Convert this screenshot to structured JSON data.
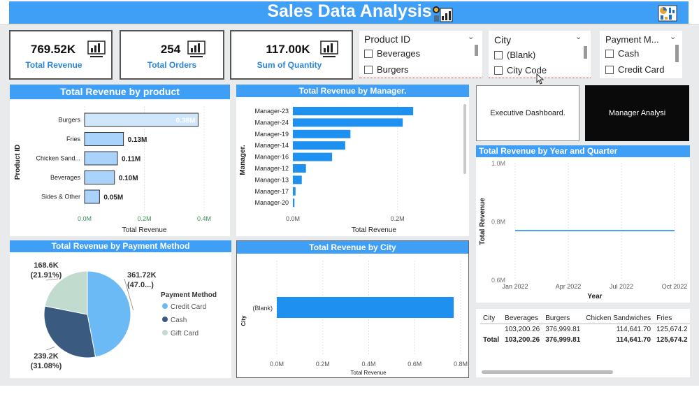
{
  "header": {
    "title": "Sales Data Analysis"
  },
  "kpis": [
    {
      "value": "769.52K",
      "label": "Total Revenue"
    },
    {
      "value": "254",
      "label": "Total Orders"
    },
    {
      "value": "117.00K",
      "label": "Sum of Quantity"
    }
  ],
  "slicers": {
    "product": {
      "title": "Product ID",
      "items": [
        "Beverages",
        "Burgers"
      ]
    },
    "city": {
      "title": "City",
      "items": [
        "(Blank)",
        "City Code"
      ]
    },
    "payment": {
      "title": "Payment M...",
      "items": [
        "Cash",
        "Credit Card"
      ]
    }
  },
  "buttons": {
    "executive": "Executive Dashboard.",
    "manager": "Manager Analysi"
  },
  "chart_data": [
    {
      "id": "rev_by_product",
      "type": "bar",
      "title": "Total Revenue by product",
      "xlabel": "Total Revenue",
      "ylabel": "Product ID",
      "categories": [
        "Burgers",
        "Fries",
        "Chicken Sand...",
        "Beverages",
        "Sides & Other"
      ],
      "values": [
        0.38,
        0.13,
        0.11,
        0.1,
        0.05
      ],
      "value_labels": [
        "0.38M",
        "0.13M",
        "0.11M",
        "0.10M",
        "0.05M"
      ],
      "xticks": [
        "0.0M",
        "0.2M",
        "0.4M"
      ],
      "xlim": [
        0,
        0.4
      ]
    },
    {
      "id": "rev_by_manager",
      "type": "bar",
      "title": "Total Revenue by Manager.",
      "xlabel": "Total Revenue",
      "ylabel": "Manager.",
      "categories": [
        "Manager-23",
        "Manager-24",
        "Manager-19",
        "Manager-14",
        "Manager-16",
        "Manager-12",
        "Manager-13",
        "Manager-17",
        "Manager-20"
      ],
      "values": [
        0.23,
        0.21,
        0.11,
        0.1,
        0.075,
        0.025,
        0.017,
        0.005,
        0.003
      ],
      "xticks": [
        "0.0M",
        "0.2M"
      ],
      "xlim": [
        0,
        0.31
      ]
    },
    {
      "id": "rev_by_payment",
      "type": "pie",
      "title": "Total Revenue by Payment Method",
      "legend_title": "Payment Method",
      "labels": [
        "Credit Card",
        "Cash",
        "Gift Card"
      ],
      "values": [
        361.72,
        239.2,
        168.6
      ],
      "colors": [
        "#6bb9f5",
        "#3a5a80",
        "#c2dbcf"
      ],
      "value_labels": [
        "361.72K",
        "239.2K",
        "168.6K"
      ],
      "pct_labels": [
        "(47.0...)",
        "(31.08%)",
        "(21.91%)"
      ]
    },
    {
      "id": "rev_by_city",
      "type": "bar",
      "title": "Total Revenue by City",
      "xlabel": "Total Revenue",
      "ylabel": "City",
      "categories": [
        "(Blank)"
      ],
      "values": [
        0.77
      ],
      "xticks": [
        "0.0M",
        "0.2M",
        "0.4M",
        "0.6M",
        "0.8M"
      ],
      "xlim": [
        0,
        0.8
      ]
    },
    {
      "id": "rev_by_year_quarter",
      "type": "line",
      "title": "Total Revenue by Year and Quarter",
      "xlabel": "Year",
      "ylabel": "Total Revenue",
      "x": [
        "Jan 2022",
        "Apr 2022",
        "Jul 2022",
        "Oct 2022"
      ],
      "y": [
        0.77,
        0.77,
        0.77,
        0.77
      ],
      "yticks": [
        "1.0M",
        "0.8M",
        "0.6M"
      ],
      "ylim": [
        0.6,
        1.0
      ]
    }
  ],
  "matrix": {
    "headers": [
      "City",
      "Beverages",
      "Burgers",
      "Chicken Sandwiches",
      "Fries"
    ],
    "rows": [
      [
        "",
        "103,200.26",
        "376,999.81",
        "114,641.70",
        "125,674.2"
      ],
      [
        "Total",
        "103,200.26",
        "376,999.81",
        "114,641.70",
        "125,674.2"
      ]
    ]
  },
  "colors": {
    "accent": "#3f9ef5",
    "bar": "#1e90f0",
    "bar_light": "#a9d3fa"
  }
}
